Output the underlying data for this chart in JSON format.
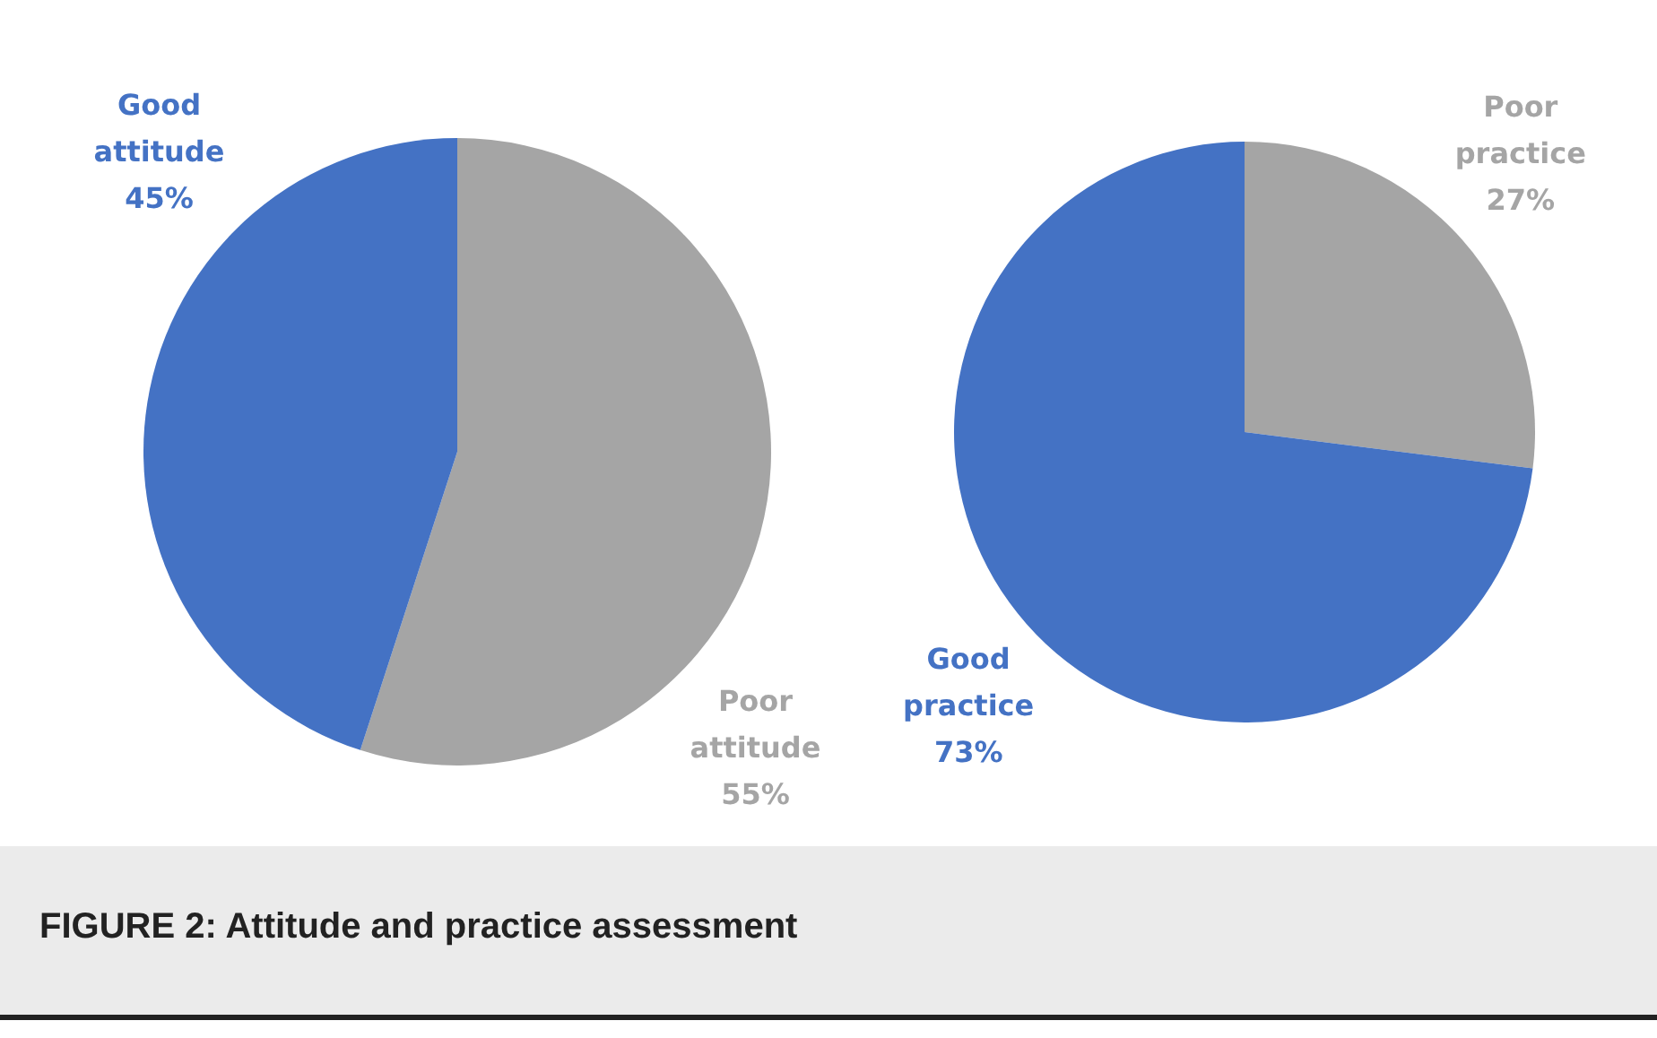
{
  "chart_data": [
    {
      "type": "pie",
      "categories": [
        "Poor attitude",
        "Good attitude"
      ],
      "values": [
        55,
        45
      ],
      "colors": [
        "#a5a5a5",
        "#4472c4"
      ],
      "value_labels": [
        "55%",
        "45%"
      ],
      "annotations": [
        "FIGURE 2: Attitude and practice assessment"
      ]
    },
    {
      "type": "pie",
      "categories": [
        "Poor practice",
        "Good practice"
      ],
      "values": [
        27,
        73
      ],
      "colors": [
        "#a5a5a5",
        "#4472c4"
      ],
      "value_labels": [
        "27%",
        "73%"
      ]
    }
  ]
}
